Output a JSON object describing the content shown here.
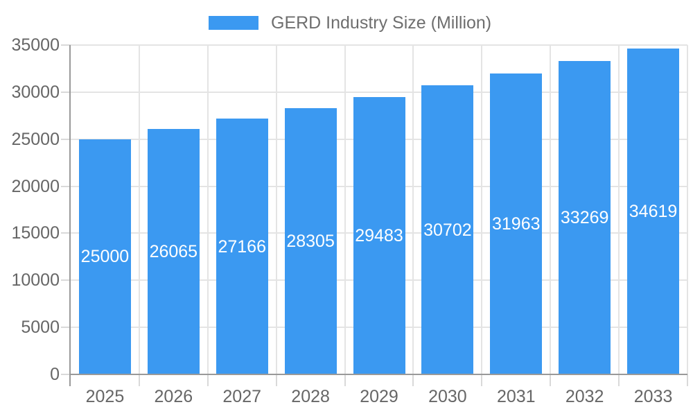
{
  "chart_data": {
    "type": "bar",
    "title": "GERD Industry Size (Million)",
    "series": [
      {
        "name": "GERD Industry Size (Million)",
        "values": [
          25000,
          26065,
          27166,
          28305,
          29483,
          30702,
          31963,
          33269,
          34619
        ]
      }
    ],
    "categories": [
      "2025",
      "2026",
      "2027",
      "2028",
      "2029",
      "2030",
      "2031",
      "2032",
      "2033"
    ],
    "values": [
      25000,
      26065,
      27166,
      28305,
      29483,
      30702,
      31963,
      33269,
      34619
    ],
    "value_labels": [
      "25000",
      "26065",
      "27166",
      "28305",
      "29483",
      "30702",
      "31963",
      "33269",
      "34619"
    ],
    "xlabel": "",
    "ylabel": "",
    "ylim": [
      0,
      35000
    ],
    "yticks": [
      0,
      5000,
      10000,
      15000,
      20000,
      25000,
      30000,
      35000
    ],
    "ytick_labels": [
      "0",
      "5000",
      "10000",
      "15000",
      "20000",
      "25000",
      "30000",
      "35000"
    ],
    "grid": {
      "horizontal": true,
      "vertical": true
    },
    "legend_position": "top-center",
    "bar_label_position": "inside-center",
    "colors": {
      "bar": "#3b99f1",
      "value_label": "#ffffff",
      "axis_label": "#666666",
      "legend_label": "#6e6e6e",
      "gridline": "#e4e4e4",
      "tick": "#d9d9d9",
      "axis_line": "#999999",
      "background": "#ffffff"
    }
  }
}
